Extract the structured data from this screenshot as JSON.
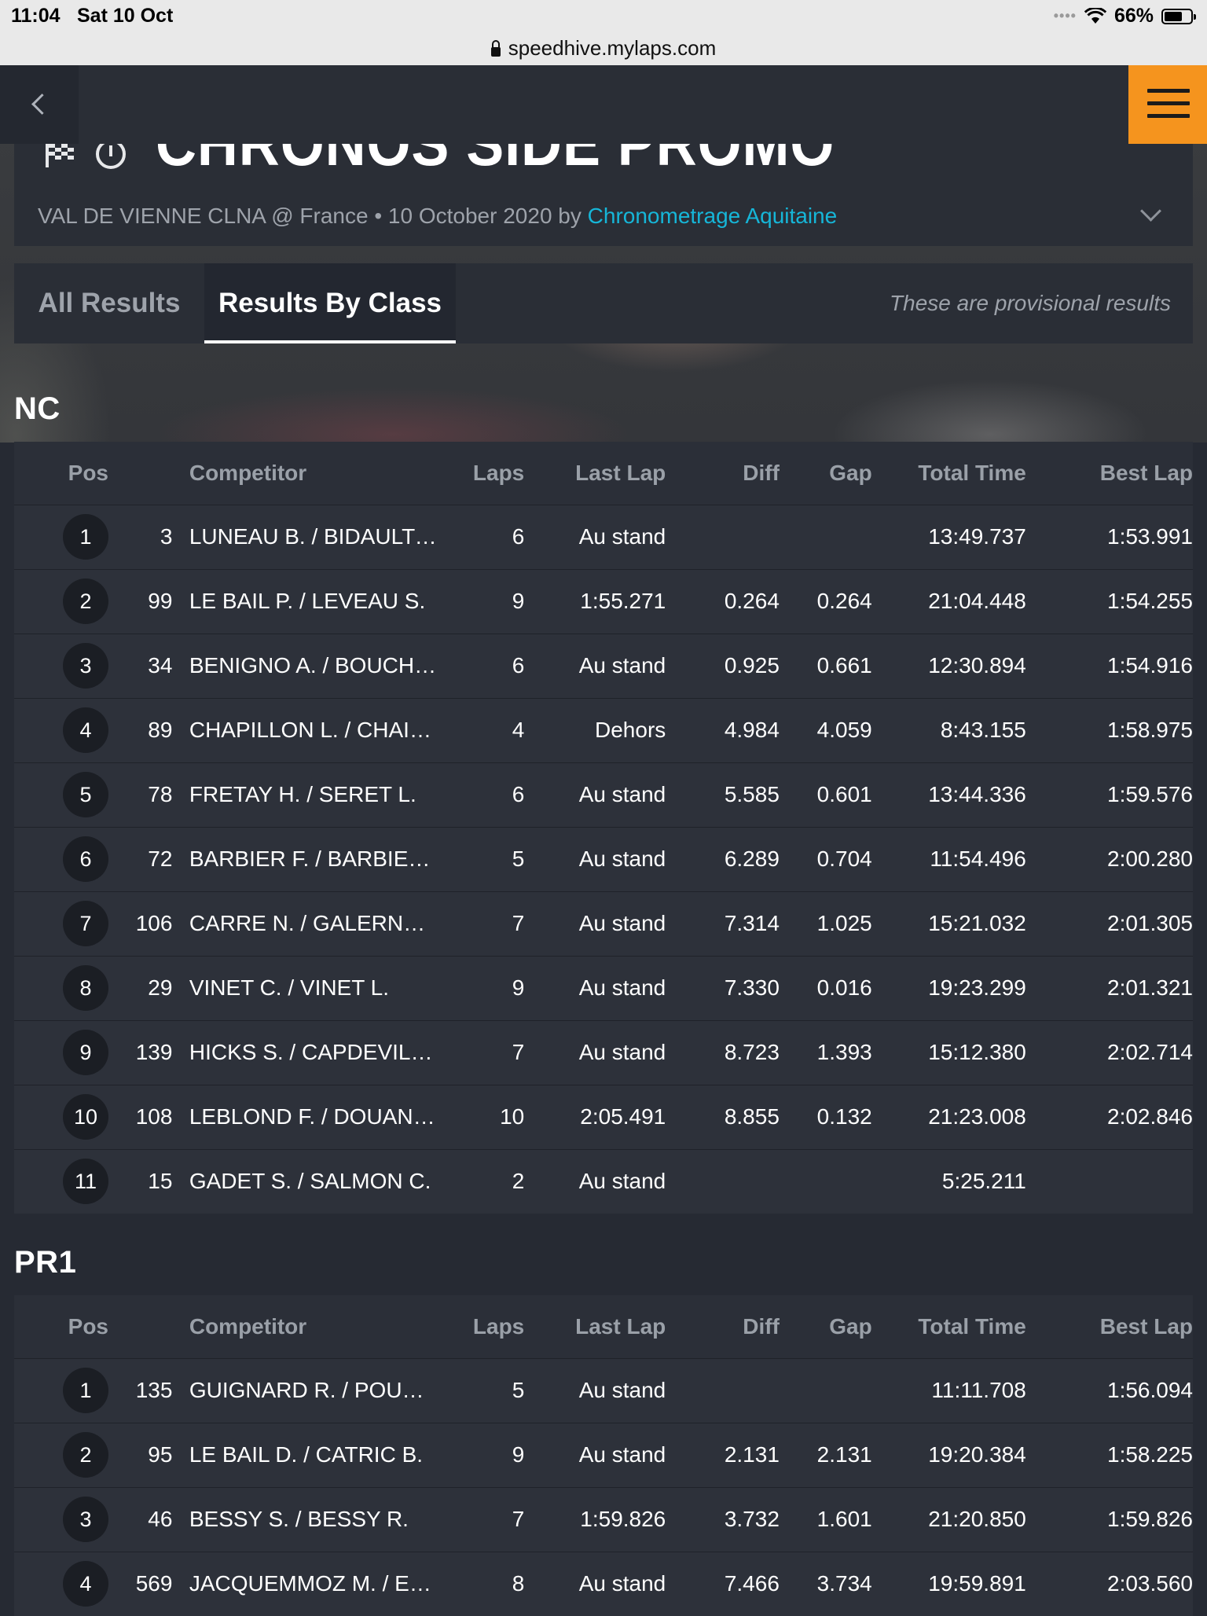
{
  "status_bar": {
    "time": "11:04",
    "date": "Sat 10 Oct",
    "battery": "66%"
  },
  "browser": {
    "url": "speedhive.mylaps.com"
  },
  "event": {
    "title": "CHRONOS SIDE PROMO",
    "meta_prefix": "VAL DE VIENNE CLNA @ France • 10 October 2020 by",
    "organizer": "Chronometrage Aquitaine"
  },
  "tabs": {
    "all_results": "All Results",
    "results_by_class": "Results By Class"
  },
  "provisional_note": "These are provisional results",
  "columns": {
    "pos": "Pos",
    "competitor": "Competitor",
    "laps": "Laps",
    "last_lap": "Last Lap",
    "diff": "Diff",
    "gap": "Gap",
    "total_time": "Total Time",
    "best_lap": "Best Lap"
  },
  "classes": [
    {
      "name": "NC",
      "rows": [
        {
          "pos": "1",
          "num": "3",
          "competitor": "LUNEAU B. / BIDAULT N.",
          "laps": "6",
          "last_lap": "Au stand",
          "diff": "",
          "gap": "",
          "total_time": "13:49.737",
          "best_lap": "1:53.991"
        },
        {
          "pos": "2",
          "num": "99",
          "competitor": "LE BAIL P. / LEVEAU S.",
          "laps": "9",
          "last_lap": "1:55.271",
          "diff": "0.264",
          "gap": "0.264",
          "total_time": "21:04.448",
          "best_lap": "1:54.255"
        },
        {
          "pos": "3",
          "num": "34",
          "competitor": "BENIGNO A. / BOUCHAR…",
          "laps": "6",
          "last_lap": "Au stand",
          "diff": "0.925",
          "gap": "0.661",
          "total_time": "12:30.894",
          "best_lap": "1:54.916"
        },
        {
          "pos": "4",
          "num": "89",
          "competitor": "CHAPILLON L. / CHAIGN…",
          "laps": "4",
          "last_lap": "Dehors",
          "diff": "4.984",
          "gap": "4.059",
          "total_time": "8:43.155",
          "best_lap": "1:58.975"
        },
        {
          "pos": "5",
          "num": "78",
          "competitor": "FRETAY H. / SERET L.",
          "laps": "6",
          "last_lap": "Au stand",
          "diff": "5.585",
          "gap": "0.601",
          "total_time": "13:44.336",
          "best_lap": "1:59.576"
        },
        {
          "pos": "6",
          "num": "72",
          "competitor": "BARBIER F. / BARBIER D.",
          "laps": "5",
          "last_lap": "Au stand",
          "diff": "6.289",
          "gap": "0.704",
          "total_time": "11:54.496",
          "best_lap": "2:00.280"
        },
        {
          "pos": "7",
          "num": "106",
          "competitor": "CARRE N. / GALERNE C.",
          "laps": "7",
          "last_lap": "Au stand",
          "diff": "7.314",
          "gap": "1.025",
          "total_time": "15:21.032",
          "best_lap": "2:01.305"
        },
        {
          "pos": "8",
          "num": "29",
          "competitor": "VINET C. / VINET L.",
          "laps": "9",
          "last_lap": "Au stand",
          "diff": "7.330",
          "gap": "0.016",
          "total_time": "19:23.299",
          "best_lap": "2:01.321"
        },
        {
          "pos": "9",
          "num": "139",
          "competitor": "HICKS S. / CAPDEVILLE V.",
          "laps": "7",
          "last_lap": "Au stand",
          "diff": "8.723",
          "gap": "1.393",
          "total_time": "15:12.380",
          "best_lap": "2:02.714"
        },
        {
          "pos": "10",
          "num": "108",
          "competitor": "LEBLOND F. / DOUANE C…",
          "laps": "10",
          "last_lap": "2:05.491",
          "diff": "8.855",
          "gap": "0.132",
          "total_time": "21:23.008",
          "best_lap": "2:02.846"
        },
        {
          "pos": "11",
          "num": "15",
          "competitor": "GADET S. / SALMON C.",
          "laps": "2",
          "last_lap": "Au stand",
          "diff": "",
          "gap": "",
          "total_time": "5:25.211",
          "best_lap": ""
        }
      ]
    },
    {
      "name": "PR1",
      "rows": [
        {
          "pos": "1",
          "num": "135",
          "competitor": "GUIGNARD R. / POUX F.",
          "laps": "5",
          "last_lap": "Au stand",
          "diff": "",
          "gap": "",
          "total_time": "11:11.708",
          "best_lap": "1:56.094"
        },
        {
          "pos": "2",
          "num": "95",
          "competitor": "LE BAIL D. / CATRIC B.",
          "laps": "9",
          "last_lap": "Au stand",
          "diff": "2.131",
          "gap": "2.131",
          "total_time": "19:20.384",
          "best_lap": "1:58.225"
        },
        {
          "pos": "3",
          "num": "46",
          "competitor": "BESSY S. / BESSY R.",
          "laps": "7",
          "last_lap": "1:59.826",
          "diff": "3.732",
          "gap": "1.601",
          "total_time": "21:20.850",
          "best_lap": "1:59.826"
        },
        {
          "pos": "4",
          "num": "569",
          "competitor": "JACQUEMMOZ M. / ENJA…",
          "laps": "8",
          "last_lap": "Au stand",
          "diff": "7.466",
          "gap": "3.734",
          "total_time": "19:59.891",
          "best_lap": "2:03.560"
        }
      ]
    }
  ]
}
